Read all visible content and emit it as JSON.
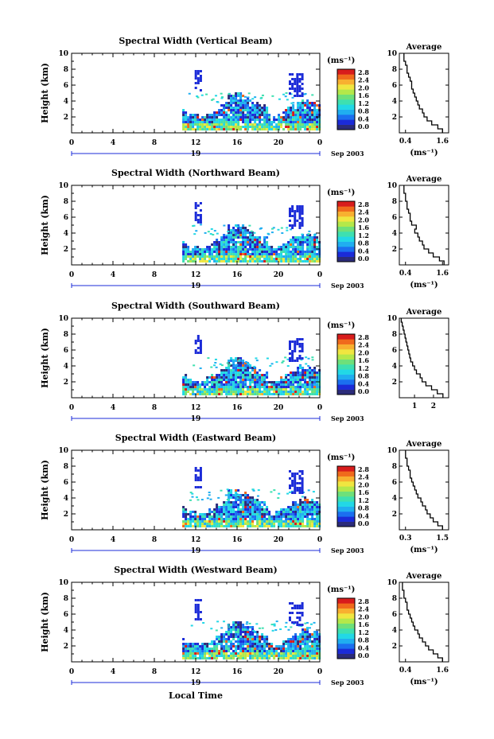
{
  "figure": {
    "xlabel": "Local Time",
    "colormap": [
      "#2b2b7a",
      "#1b2bd8",
      "#1b6ff0",
      "#20aef0",
      "#22d8e6",
      "#3ee0b0",
      "#6ee07a",
      "#b4e84a",
      "#f0e640",
      "#f8b030",
      "#f06a1c",
      "#d81c1c"
    ]
  },
  "chart_data": [
    {
      "type": "heatmap",
      "title": "Spectral Width (Vertical Beam)",
      "ylabel": "Height (km)",
      "x_ticks": [
        "0",
        "4",
        "8",
        "12",
        "16",
        "20",
        "0"
      ],
      "date_label": "19",
      "month_label": "Sep 2003",
      "xlim": [
        0,
        24
      ],
      "ylim": [
        0,
        10
      ],
      "y_ticks": [
        "2",
        "4",
        "6",
        "8",
        "10"
      ],
      "colorbar": {
        "unit": "(ms⁻¹)",
        "ticks": [
          "0.0",
          "0.4",
          "0.8",
          "1.2",
          "1.6",
          "2.0",
          "2.4",
          "2.8"
        ],
        "range": [
          0.0,
          2.8
        ]
      },
      "average": {
        "title": "Average",
        "xlabel": "(ms⁻¹)",
        "x_ticks": [
          "0.4",
          "1.6"
        ],
        "xlim": [
          0.2,
          1.8
        ],
        "ylim": [
          0,
          10
        ],
        "y_ticks": [
          "2",
          "4",
          "6",
          "8",
          "10"
        ],
        "profile": {
          "height": [
            0.5,
            1,
            1.5,
            2,
            2.5,
            3,
            3.5,
            4,
            4.5,
            5,
            5.5,
            6,
            6.5,
            7,
            7.5,
            8,
            8.5,
            9,
            9.5,
            10
          ],
          "width": [
            1.6,
            1.45,
            1.25,
            1.1,
            1.0,
            0.95,
            0.85,
            0.8,
            0.75,
            0.7,
            0.65,
            0.6,
            0.6,
            0.55,
            0.5,
            0.45,
            0.45,
            0.4,
            0.35,
            0.35
          ]
        }
      }
    },
    {
      "type": "heatmap",
      "title": "Spectral Width (Northward Beam)",
      "ylabel": "Height (km)",
      "x_ticks": [
        "0",
        "4",
        "8",
        "12",
        "16",
        "20",
        "0"
      ],
      "date_label": "19",
      "month_label": "Sep 2003",
      "xlim": [
        0,
        24
      ],
      "ylim": [
        0,
        10
      ],
      "y_ticks": [
        "2",
        "4",
        "6",
        "8",
        "10"
      ],
      "colorbar": {
        "unit": "(ms⁻¹)",
        "ticks": [
          "0.0",
          "0.4",
          "0.8",
          "1.2",
          "1.6",
          "2.0",
          "2.4",
          "2.8"
        ],
        "range": [
          0.0,
          2.8
        ]
      },
      "average": {
        "title": "Average",
        "xlabel": "(ms⁻¹)",
        "x_ticks": [
          "0.4",
          "1.6"
        ],
        "xlim": [
          0.2,
          1.8
        ],
        "ylim": [
          0,
          10
        ],
        "y_ticks": [
          "2",
          "4",
          "6",
          "8",
          "10"
        ],
        "profile": {
          "height": [
            0.5,
            1,
            1.5,
            2,
            2.5,
            3,
            3.5,
            4,
            4.5,
            5,
            5.5,
            6,
            6.5,
            7,
            7.5,
            8,
            8.5,
            9,
            9.5,
            10
          ],
          "width": [
            1.65,
            1.5,
            1.3,
            1.15,
            1.0,
            0.95,
            0.85,
            0.8,
            0.7,
            0.75,
            0.6,
            0.55,
            0.55,
            0.5,
            0.45,
            0.45,
            0.4,
            0.4,
            0.35,
            0.35
          ]
        }
      }
    },
    {
      "type": "heatmap",
      "title": "Spectral Width (Southward Beam)",
      "ylabel": "Height (km)",
      "x_ticks": [
        "0",
        "4",
        "8",
        "12",
        "16",
        "20",
        "0"
      ],
      "date_label": "19",
      "month_label": "Sep 2003",
      "xlim": [
        0,
        24
      ],
      "ylim": [
        0,
        10
      ],
      "y_ticks": [
        "2",
        "4",
        "6",
        "8",
        "10"
      ],
      "colorbar": {
        "unit": "(ms⁻¹)",
        "ticks": [
          "0.0",
          "0.4",
          "0.8",
          "1.2",
          "1.6",
          "2.0",
          "2.4",
          "2.8"
        ],
        "range": [
          0.0,
          2.8
        ]
      },
      "average": {
        "title": "Average",
        "xlabel": "",
        "x_ticks": [
          "1",
          "2"
        ],
        "xlim": [
          0.2,
          2.8
        ],
        "ylim": [
          0,
          10
        ],
        "y_ticks": [
          "2",
          "4",
          "6",
          "8",
          "10"
        ],
        "profile": {
          "height": [
            0.5,
            1,
            1.5,
            2,
            2.5,
            3,
            3.5,
            4,
            4.5,
            5,
            5.5,
            6,
            6.5,
            7,
            7.5,
            8,
            8.5,
            9,
            9.5,
            10
          ],
          "width": [
            2.5,
            2.2,
            1.9,
            1.6,
            1.4,
            1.3,
            1.1,
            1.0,
            0.9,
            0.8,
            0.75,
            0.7,
            0.65,
            0.6,
            0.55,
            0.5,
            0.45,
            0.4,
            0.35,
            0.3
          ]
        }
      }
    },
    {
      "type": "heatmap",
      "title": "Spectral Width (Eastward Beam)",
      "ylabel": "Height (km)",
      "x_ticks": [
        "0",
        "4",
        "8",
        "12",
        "16",
        "20",
        "0"
      ],
      "date_label": "19",
      "month_label": "Sep 2003",
      "xlim": [
        0,
        24
      ],
      "ylim": [
        0,
        10
      ],
      "y_ticks": [
        "2",
        "4",
        "6",
        "8",
        "10"
      ],
      "colorbar": {
        "unit": "(ms⁻¹)",
        "ticks": [
          "0.0",
          "0.4",
          "0.8",
          "1.2",
          "1.6",
          "2.0",
          "2.4",
          "2.8"
        ],
        "range": [
          0.0,
          2.8
        ]
      },
      "average": {
        "title": "Average",
        "xlabel": "(ms⁻¹)",
        "x_ticks": [
          "0.3",
          "1.5"
        ],
        "xlim": [
          0.1,
          1.7
        ],
        "ylim": [
          0,
          10
        ],
        "y_ticks": [
          "2",
          "4",
          "6",
          "8",
          "10"
        ],
        "profile": {
          "height": [
            0.5,
            1,
            1.5,
            2,
            2.5,
            3,
            3.5,
            4,
            4.5,
            5,
            5.5,
            6,
            6.5,
            7,
            7.5,
            8,
            8.5,
            9,
            9.5,
            10
          ],
          "width": [
            1.5,
            1.35,
            1.2,
            1.1,
            1.0,
            0.95,
            0.85,
            0.8,
            0.7,
            0.65,
            0.6,
            0.55,
            0.5,
            0.45,
            0.45,
            0.4,
            0.35,
            0.35,
            0.3,
            0.3
          ]
        }
      }
    },
    {
      "type": "heatmap",
      "title": "Spectral Width (Westward Beam)",
      "ylabel": "Height (km)",
      "x_ticks": [
        "0",
        "4",
        "8",
        "12",
        "16",
        "20",
        "0"
      ],
      "date_label": "19",
      "month_label": "Sep 2003",
      "xlim": [
        0,
        24
      ],
      "ylim": [
        0,
        10
      ],
      "y_ticks": [
        "2",
        "4",
        "6",
        "8",
        "10"
      ],
      "colorbar": {
        "unit": "(ms⁻¹)",
        "ticks": [
          "0.0",
          "0.4",
          "0.8",
          "1.2",
          "1.6",
          "2.0",
          "2.4",
          "2.8"
        ],
        "range": [
          0.0,
          2.8
        ]
      },
      "average": {
        "title": "Average",
        "xlabel": "(ms⁻¹)",
        "x_ticks": [
          "0.4",
          "1.6"
        ],
        "xlim": [
          0.2,
          1.8
        ],
        "ylim": [
          0,
          10
        ],
        "y_ticks": [
          "2",
          "4",
          "6",
          "8",
          "10"
        ],
        "profile": {
          "height": [
            0.5,
            1,
            1.5,
            2,
            2.5,
            3,
            3.5,
            4,
            4.5,
            5,
            5.5,
            6,
            6.5,
            7,
            7.5,
            8,
            8.5,
            9,
            9.5,
            10
          ],
          "width": [
            1.6,
            1.45,
            1.3,
            1.15,
            1.05,
            0.95,
            0.85,
            0.8,
            0.7,
            0.65,
            0.6,
            0.55,
            0.5,
            0.45,
            0.45,
            0.4,
            0.35,
            0.35,
            0.3,
            0.3
          ]
        }
      }
    }
  ]
}
